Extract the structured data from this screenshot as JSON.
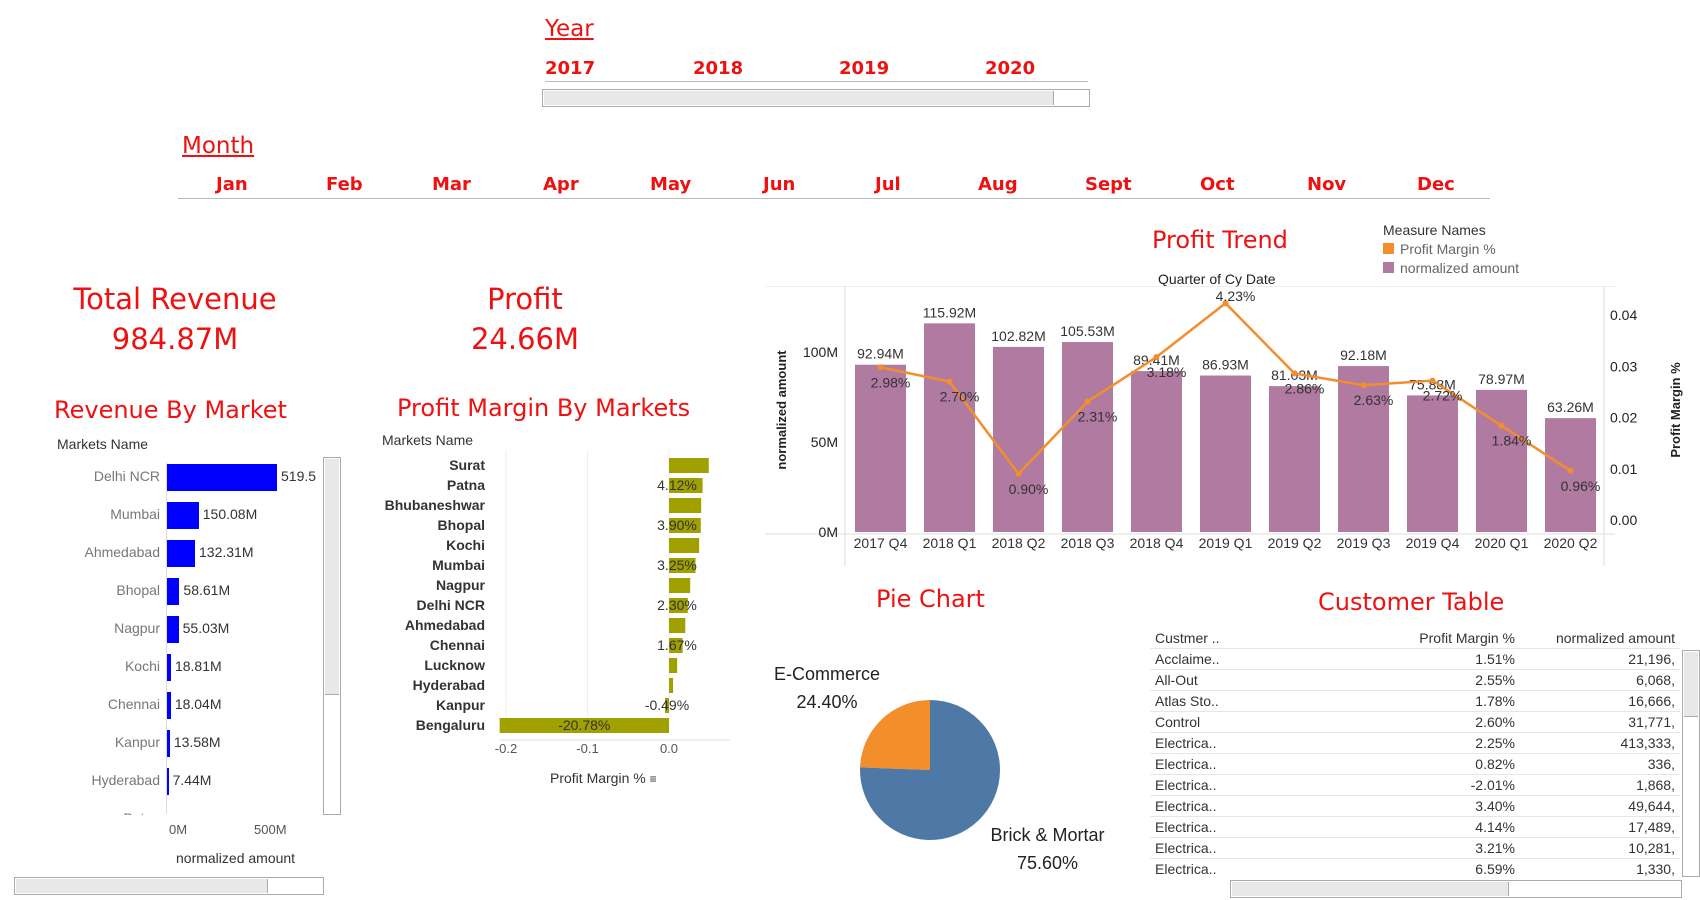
{
  "year_filter": {
    "title": "Year",
    "options": [
      "2017",
      "2018",
      "2019",
      "2020"
    ]
  },
  "month_filter": {
    "title": "Month",
    "options": [
      "Jan",
      "Feb",
      "Mar",
      "Apr",
      "May",
      "Jun",
      "Jul",
      "Aug",
      "Sept",
      "Oct",
      "Nov",
      "Dec"
    ]
  },
  "kpis": {
    "revenue_title": "Total Revenue",
    "revenue_value": "984.87M",
    "profit_title": "Profit",
    "profit_value": "24.66M"
  },
  "revenue_by_market": {
    "title": "Revenue By Market",
    "header": "Markets Name",
    "xlabel": "normalized amount",
    "ticks": [
      "0M",
      "500M"
    ],
    "rows": [
      {
        "name": "Delhi NCR",
        "value": 519.5,
        "label": "519.5"
      },
      {
        "name": "Mumbai",
        "value": 150.08,
        "label": "150.08M"
      },
      {
        "name": "Ahmedabad",
        "value": 132.31,
        "label": "132.31M"
      },
      {
        "name": "Bhopal",
        "value": 58.61,
        "label": "58.61M"
      },
      {
        "name": "Nagpur",
        "value": 55.03,
        "label": "55.03M"
      },
      {
        "name": "Kochi",
        "value": 18.81,
        "label": "18.81M"
      },
      {
        "name": "Chennai",
        "value": 18.04,
        "label": "18.04M"
      },
      {
        "name": "Kanpur",
        "value": 13.58,
        "label": "13.58M"
      },
      {
        "name": "Hyderabad",
        "value": 7.44,
        "label": "7.44M"
      },
      {
        "name": "Patna",
        "value": 0,
        "label": ""
      }
    ],
    "bar_color": "#0000ff"
  },
  "profit_margin_by_markets": {
    "title": "Profit Margin By Markets",
    "header": "Markets Name",
    "xlabel": "Profit Margin %",
    "ticks": [
      "-0.2",
      "-0.1",
      "0.0"
    ],
    "bar_color": "#a0a000",
    "rows": [
      {
        "name": "Surat",
        "value": 0.0488,
        "label": ""
      },
      {
        "name": "Patna",
        "value": 0.0412,
        "label": "4.12%"
      },
      {
        "name": "Bhubaneshwar",
        "value": 0.0395,
        "label": ""
      },
      {
        "name": "Bhopal",
        "value": 0.039,
        "label": "3.90%"
      },
      {
        "name": "Kochi",
        "value": 0.037,
        "label": ""
      },
      {
        "name": "Mumbai",
        "value": 0.0325,
        "label": "3.25%"
      },
      {
        "name": "Nagpur",
        "value": 0.026,
        "label": ""
      },
      {
        "name": "Delhi NCR",
        "value": 0.023,
        "label": "2.30%"
      },
      {
        "name": "Ahmedabad",
        "value": 0.02,
        "label": ""
      },
      {
        "name": "Chennai",
        "value": 0.0167,
        "label": "1.67%"
      },
      {
        "name": "Lucknow",
        "value": 0.01,
        "label": ""
      },
      {
        "name": "Hyderabad",
        "value": 0.005,
        "label": ""
      },
      {
        "name": "Kanpur",
        "value": -0.0049,
        "label": "-0.49%"
      },
      {
        "name": "Bengaluru",
        "value": -0.2078,
        "label": "-20.78%"
      }
    ]
  },
  "profit_trend": {
    "title": "Profit Trend",
    "header": "Quarter of Cy Date",
    "ylabel_left": "normalized amount",
    "ylabel_right": "Profit Margin %",
    "left_ticks": [
      "100M",
      "50M",
      "0M"
    ],
    "right_ticks": [
      "0.04",
      "0.03",
      "0.02",
      "0.01",
      "0.00"
    ],
    "legend_title": "Measure Names",
    "legend": [
      {
        "name": "Profit Margin %",
        "color": "#f28e2b"
      },
      {
        "name": "normalized amount",
        "color": "#b07aa1"
      }
    ]
  },
  "chart_data": [
    {
      "type": "bar",
      "title": "Profit Trend",
      "categories": [
        "2017 Q4",
        "2018 Q1",
        "2018 Q2",
        "2018 Q3",
        "2018 Q4",
        "2019 Q1",
        "2019 Q2",
        "2019 Q3",
        "2019 Q4",
        "2020 Q1",
        "2020 Q2"
      ],
      "series": [
        {
          "name": "normalized amount",
          "values": [
            92.94,
            115.92,
            102.82,
            105.53,
            89.41,
            86.93,
            81.03,
            92.18,
            75.88,
            78.97,
            63.26
          ],
          "labels": [
            "92.94M",
            "115.92M",
            "102.82M",
            "105.53M",
            "89.41M",
            "86.93M",
            "81.03M",
            "92.18M",
            "75.88M",
            "78.97M",
            "63.26M"
          ]
        },
        {
          "name": "Profit Margin %",
          "values": [
            0.0298,
            0.027,
            0.009,
            0.0231,
            0.0318,
            0.0423,
            0.0286,
            0.0263,
            0.0272,
            0.0184,
            0.0096
          ],
          "labels": [
            "2.98%",
            "2.70%",
            "0.90%",
            "2.31%",
            "3.18%",
            "4.23%",
            "2.86%",
            "2.63%",
            "2.72%",
            "1.84%",
            "0.96%"
          ]
        }
      ],
      "ylim_left": [
        0,
        130
      ],
      "ylim_right": [
        0,
        0.0455
      ]
    },
    {
      "type": "pie",
      "title": "Pie Chart",
      "slices": [
        {
          "name": "E-Commerce",
          "value": 24.4,
          "label": "24.40%",
          "color": "#f28e2b"
        },
        {
          "name": "Brick & Mortar",
          "value": 75.6,
          "label": "75.60%",
          "color": "#4e79a7"
        }
      ]
    }
  ],
  "customer_table": {
    "title": "Customer Table",
    "columns": [
      "Custmer ..",
      "Profit Margin %",
      "normalized amount"
    ],
    "rows": [
      [
        "Acclaime..",
        "1.51%",
        "21,196,"
      ],
      [
        "All-Out",
        "2.55%",
        "6,068,"
      ],
      [
        "Atlas Sto..",
        "1.78%",
        "16,666,"
      ],
      [
        "Control",
        "2.60%",
        "31,771,"
      ],
      [
        "Electrica..",
        "2.25%",
        "413,333,"
      ],
      [
        "Electrica..",
        "0.82%",
        "336,"
      ],
      [
        "Electrica..",
        "-2.01%",
        "1,868,"
      ],
      [
        "Electrica..",
        "3.40%",
        "49,644,"
      ],
      [
        "Electrica..",
        "4.14%",
        "17,489,"
      ],
      [
        "Electrica..",
        "3.21%",
        "10,281,"
      ],
      [
        "Electrica..",
        "6.59%",
        "1,330,"
      ]
    ]
  }
}
